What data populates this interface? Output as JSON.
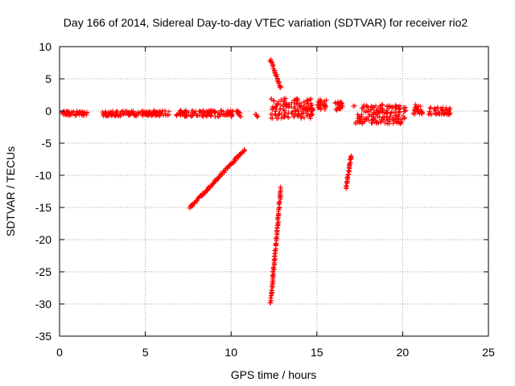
{
  "chart_data": {
    "type": "scatter",
    "title": "Day 166 of 2014, Sidereal Day-to-day VTEC variation (SDTVAR) for receiver rio2",
    "xlabel": "GPS time / hours",
    "ylabel": "SDTVAR / TECUs",
    "xlim": [
      0,
      25
    ],
    "ylim": [
      -35,
      10
    ],
    "xticks": [
      0,
      5,
      10,
      15,
      20,
      25
    ],
    "yticks": [
      10,
      5,
      0,
      -5,
      -10,
      -15,
      -20,
      -25,
      -30,
      -35
    ],
    "grid": true,
    "marker": "plus",
    "color": "#ff0000",
    "clusters": [
      {
        "kind": "band",
        "x": [
          0.1,
          1.6
        ],
        "y": [
          -0.7,
          0.0
        ],
        "n": 60
      },
      {
        "kind": "band",
        "x": [
          2.5,
          4.6
        ],
        "y": [
          -0.8,
          0.0
        ],
        "n": 80
      },
      {
        "kind": "band",
        "x": [
          4.7,
          6.4
        ],
        "y": [
          -0.8,
          0.1
        ],
        "n": 70
      },
      {
        "kind": "band",
        "x": [
          6.8,
          10.6
        ],
        "y": [
          -0.9,
          0.1
        ],
        "n": 140
      },
      {
        "kind": "band",
        "x": [
          11.4,
          11.6
        ],
        "y": [
          -1.0,
          -0.5
        ],
        "n": 5
      },
      {
        "kind": "line",
        "x": [
          7.6,
          10.8
        ],
        "y": [
          -15.0,
          -6.0
        ],
        "n": 110
      },
      {
        "kind": "line",
        "x": [
          12.3,
          12.9
        ],
        "y": [
          8.0,
          3.5
        ],
        "n": 30
      },
      {
        "kind": "line",
        "x": [
          12.3,
          12.9
        ],
        "y": [
          -30.0,
          -12.0
        ],
        "n": 110
      },
      {
        "kind": "band",
        "x": [
          12.3,
          14.8
        ],
        "y": [
          -1.2,
          2.0
        ],
        "n": 150
      },
      {
        "kind": "band",
        "x": [
          15.0,
          15.6
        ],
        "y": [
          0.2,
          1.8
        ],
        "n": 30
      },
      {
        "kind": "band",
        "x": [
          16.0,
          16.5
        ],
        "y": [
          0.0,
          1.5
        ],
        "n": 25
      },
      {
        "kind": "line",
        "x": [
          16.7,
          17.0
        ],
        "y": [
          -12.0,
          -7.0
        ],
        "n": 40
      },
      {
        "kind": "band",
        "x": [
          17.1,
          20.2
        ],
        "y": [
          -2.0,
          1.0
        ],
        "n": 180
      },
      {
        "kind": "band",
        "x": [
          20.6,
          21.2
        ],
        "y": [
          -0.6,
          1.0
        ],
        "n": 25
      },
      {
        "kind": "band",
        "x": [
          21.5,
          22.8
        ],
        "y": [
          -0.6,
          0.6
        ],
        "n": 50
      }
    ]
  }
}
